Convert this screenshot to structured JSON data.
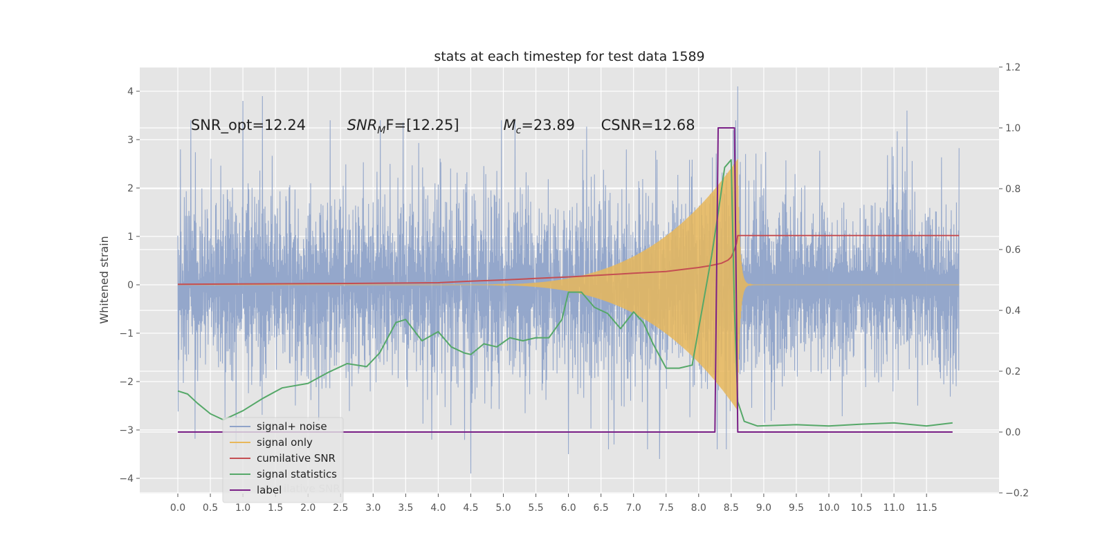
{
  "chart_data": {
    "type": "line",
    "title": "stats at each timestep for test data 1589",
    "ylabel": "Whitened strain",
    "y2label": "",
    "xlim": [
      -0.58,
      12.6
    ],
    "ylim": [
      -4.4,
      4.5
    ],
    "y2lim": [
      -0.2,
      1.2
    ],
    "x_ticks": [
      0.0,
      0.5,
      1.0,
      1.5,
      2.0,
      2.5,
      3.0,
      3.5,
      4.0,
      4.5,
      5.0,
      5.5,
      6.0,
      6.5,
      7.0,
      7.5,
      8.0,
      8.5,
      9.0,
      9.5,
      10.0,
      10.5,
      11.0,
      11.5
    ],
    "x_tick_labels": [
      "0.0",
      "0.5",
      "1.0",
      "1.5",
      "2.0",
      "2.5",
      "3.0",
      "3.5",
      "4.0",
      "4.5",
      "5.0",
      "5.5",
      "6.0",
      "6.5",
      "7.0",
      "7.5",
      "8.0",
      "8.5",
      "9.0",
      "9.5",
      "10.0",
      "10.5",
      "11.0",
      "11.5"
    ],
    "y_ticks": [
      -4,
      -3,
      -2,
      -1,
      0,
      1,
      2,
      3,
      4
    ],
    "y_tick_labels": [
      "−4",
      "−3",
      "−2",
      "−1",
      "0",
      "1",
      "2",
      "3",
      "4"
    ],
    "y2_ticks": [
      -0.2,
      0.0,
      0.2,
      0.4,
      0.6,
      0.8,
      1.0,
      1.2
    ],
    "y2_tick_labels": [
      "−0.2",
      "0.0",
      "0.2",
      "0.4",
      "0.6",
      "0.8",
      "1.0",
      "1.2"
    ],
    "grid": true,
    "legend_position": "lower-left",
    "annotations": [
      {
        "text": "SNR_opt=12.24",
        "x": 0.2,
        "y": 3.2
      },
      {
        "text_main": "SNR",
        "text_sub": "M",
        "text_rest": "F=[12.25]",
        "x": 2.6,
        "y": 3.2
      },
      {
        "text_main": "M",
        "text_sub": "c",
        "text_rest": "=23.89",
        "x": 5.0,
        "y": 3.2
      },
      {
        "text": "CSNR=12.68",
        "x": 6.5,
        "y": 3.2
      }
    ],
    "series": [
      {
        "name": "signal+ noise",
        "color": "#8fa3c9",
        "axis": "left",
        "kind": "noise",
        "x_range": [
          0.0,
          12.0
        ],
        "approx_amplitude": 2.3,
        "spikes": [
          [
            1.0,
            3.8
          ],
          [
            1.3,
            3.9
          ],
          [
            4.5,
            -3.9
          ],
          [
            6.0,
            -3.5
          ],
          [
            6.7,
            -3.3
          ],
          [
            7.4,
            -3.6
          ],
          [
            8.6,
            4.1
          ],
          [
            11.2,
            3.6
          ],
          [
            3.9,
            -3.2
          ]
        ]
      },
      {
        "name": "signal only",
        "color": "#e8b75a",
        "axis": "left",
        "kind": "chirp",
        "x_range": [
          0.0,
          12.0
        ],
        "merger_x": 8.6,
        "peak_amplitude": 2.6
      },
      {
        "name": "cumilative SNR",
        "color": "#c44e52",
        "axis": "right",
        "x": [
          0.0,
          1.0,
          2.0,
          3.0,
          4.0,
          4.5,
          5.0,
          5.5,
          6.0,
          6.5,
          7.0,
          7.5,
          7.8,
          8.0,
          8.2,
          8.35,
          8.45,
          8.5,
          8.55,
          8.58,
          8.6,
          9.0,
          10.0,
          11.0,
          12.0
        ],
        "y": [
          0.486,
          0.487,
          0.488,
          0.489,
          0.491,
          0.496,
          0.5,
          0.505,
          0.51,
          0.516,
          0.522,
          0.528,
          0.536,
          0.541,
          0.548,
          0.555,
          0.565,
          0.575,
          0.6,
          0.62,
          0.646,
          0.646,
          0.646,
          0.646,
          0.646
        ]
      },
      {
        "name": "signal statistics",
        "color": "#55a868",
        "axis": "right",
        "x": [
          0.0,
          0.15,
          0.3,
          0.5,
          0.7,
          1.0,
          1.3,
          1.6,
          2.0,
          2.3,
          2.6,
          2.9,
          3.1,
          3.35,
          3.5,
          3.75,
          4.0,
          4.2,
          4.4,
          4.5,
          4.7,
          4.9,
          5.1,
          5.3,
          5.5,
          5.7,
          5.9,
          6.0,
          6.2,
          6.4,
          6.6,
          6.8,
          7.0,
          7.15,
          7.3,
          7.5,
          7.7,
          7.9,
          8.05,
          8.2,
          8.3,
          8.4,
          8.5,
          8.55,
          8.6,
          8.7,
          8.9,
          9.5,
          10.0,
          10.5,
          11.0,
          11.5,
          11.9
        ],
        "y": [
          0.135,
          0.125,
          0.095,
          0.06,
          0.04,
          0.07,
          0.11,
          0.145,
          0.16,
          0.195,
          0.225,
          0.215,
          0.26,
          0.36,
          0.37,
          0.3,
          0.33,
          0.28,
          0.26,
          0.255,
          0.29,
          0.28,
          0.31,
          0.3,
          0.31,
          0.31,
          0.37,
          0.46,
          0.46,
          0.41,
          0.39,
          0.34,
          0.395,
          0.36,
          0.29,
          0.21,
          0.21,
          0.22,
          0.4,
          0.58,
          0.72,
          0.87,
          0.895,
          0.4,
          0.1,
          0.035,
          0.02,
          0.024,
          0.02,
          0.026,
          0.03,
          0.02,
          0.03
        ]
      },
      {
        "name": "label",
        "color": "#7a1f87",
        "axis": "right",
        "x": [
          0.0,
          8.25,
          8.3,
          8.55,
          8.6,
          11.9
        ],
        "y": [
          0.0,
          0.0,
          1.0,
          1.0,
          0.0,
          0.0
        ]
      }
    ],
    "legend_overlap_text": "ilative SNR"
  }
}
